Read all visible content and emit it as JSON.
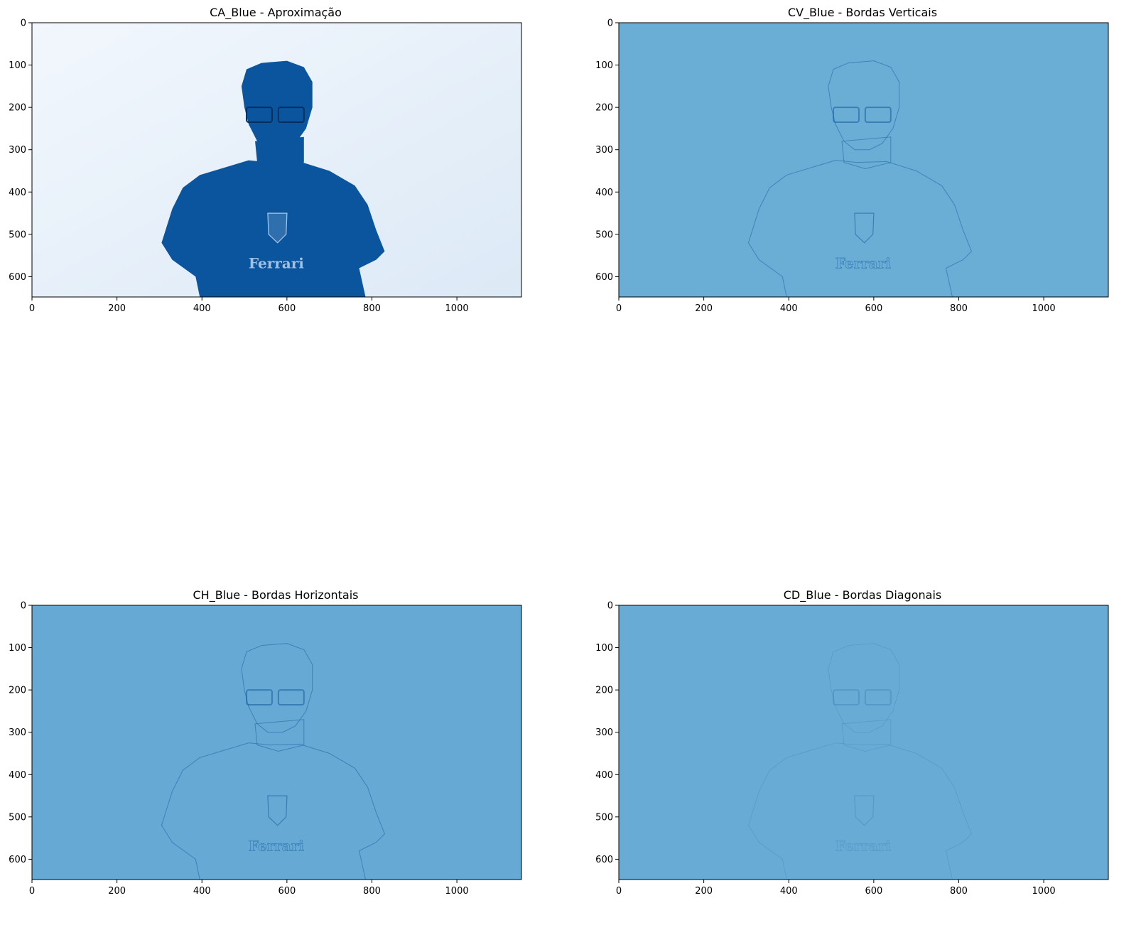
{
  "chart_data": [
    {
      "type": "image",
      "title": "CA_Blue - Aproximação",
      "xticks": [
        0,
        200,
        400,
        600,
        800,
        1000
      ],
      "yticks": [
        0,
        100,
        200,
        300,
        400,
        500,
        600
      ],
      "xlim": [
        0,
        1152
      ],
      "ylim": [
        648,
        0
      ],
      "colormap": "Blues",
      "background_color": "#dce9f6",
      "dark_color": "#0b559f"
    },
    {
      "type": "image",
      "title": "CV_Blue - Bordas Verticais",
      "xticks": [
        0,
        200,
        400,
        600,
        800,
        1000
      ],
      "yticks": [
        0,
        100,
        200,
        300,
        400,
        500,
        600
      ],
      "xlim": [
        0,
        1152
      ],
      "ylim": [
        648,
        0
      ],
      "colormap": "Blues",
      "background_color": "#6aaed6",
      "dark_color": "#08519c"
    },
    {
      "type": "image",
      "title": "CH_Blue - Bordas Horizontais",
      "xticks": [
        0,
        200,
        400,
        600,
        800,
        1000
      ],
      "yticks": [
        0,
        100,
        200,
        300,
        400,
        500,
        600
      ],
      "xlim": [
        0,
        1152
      ],
      "ylim": [
        648,
        0
      ],
      "colormap": "Blues",
      "background_color": "#66a9d4",
      "dark_color": "#08519c"
    },
    {
      "type": "image",
      "title": "CD_Blue - Bordas Diagonais",
      "xticks": [
        0,
        200,
        400,
        600,
        800,
        1000
      ],
      "yticks": [
        0,
        100,
        200,
        300,
        400,
        500,
        600
      ],
      "xlim": [
        0,
        1152
      ],
      "ylim": [
        648,
        0
      ],
      "colormap": "Blues",
      "background_color": "#68acd5",
      "dark_color": "#08519c"
    }
  ],
  "image_text": {
    "shirt_logo": "Ferrari"
  }
}
